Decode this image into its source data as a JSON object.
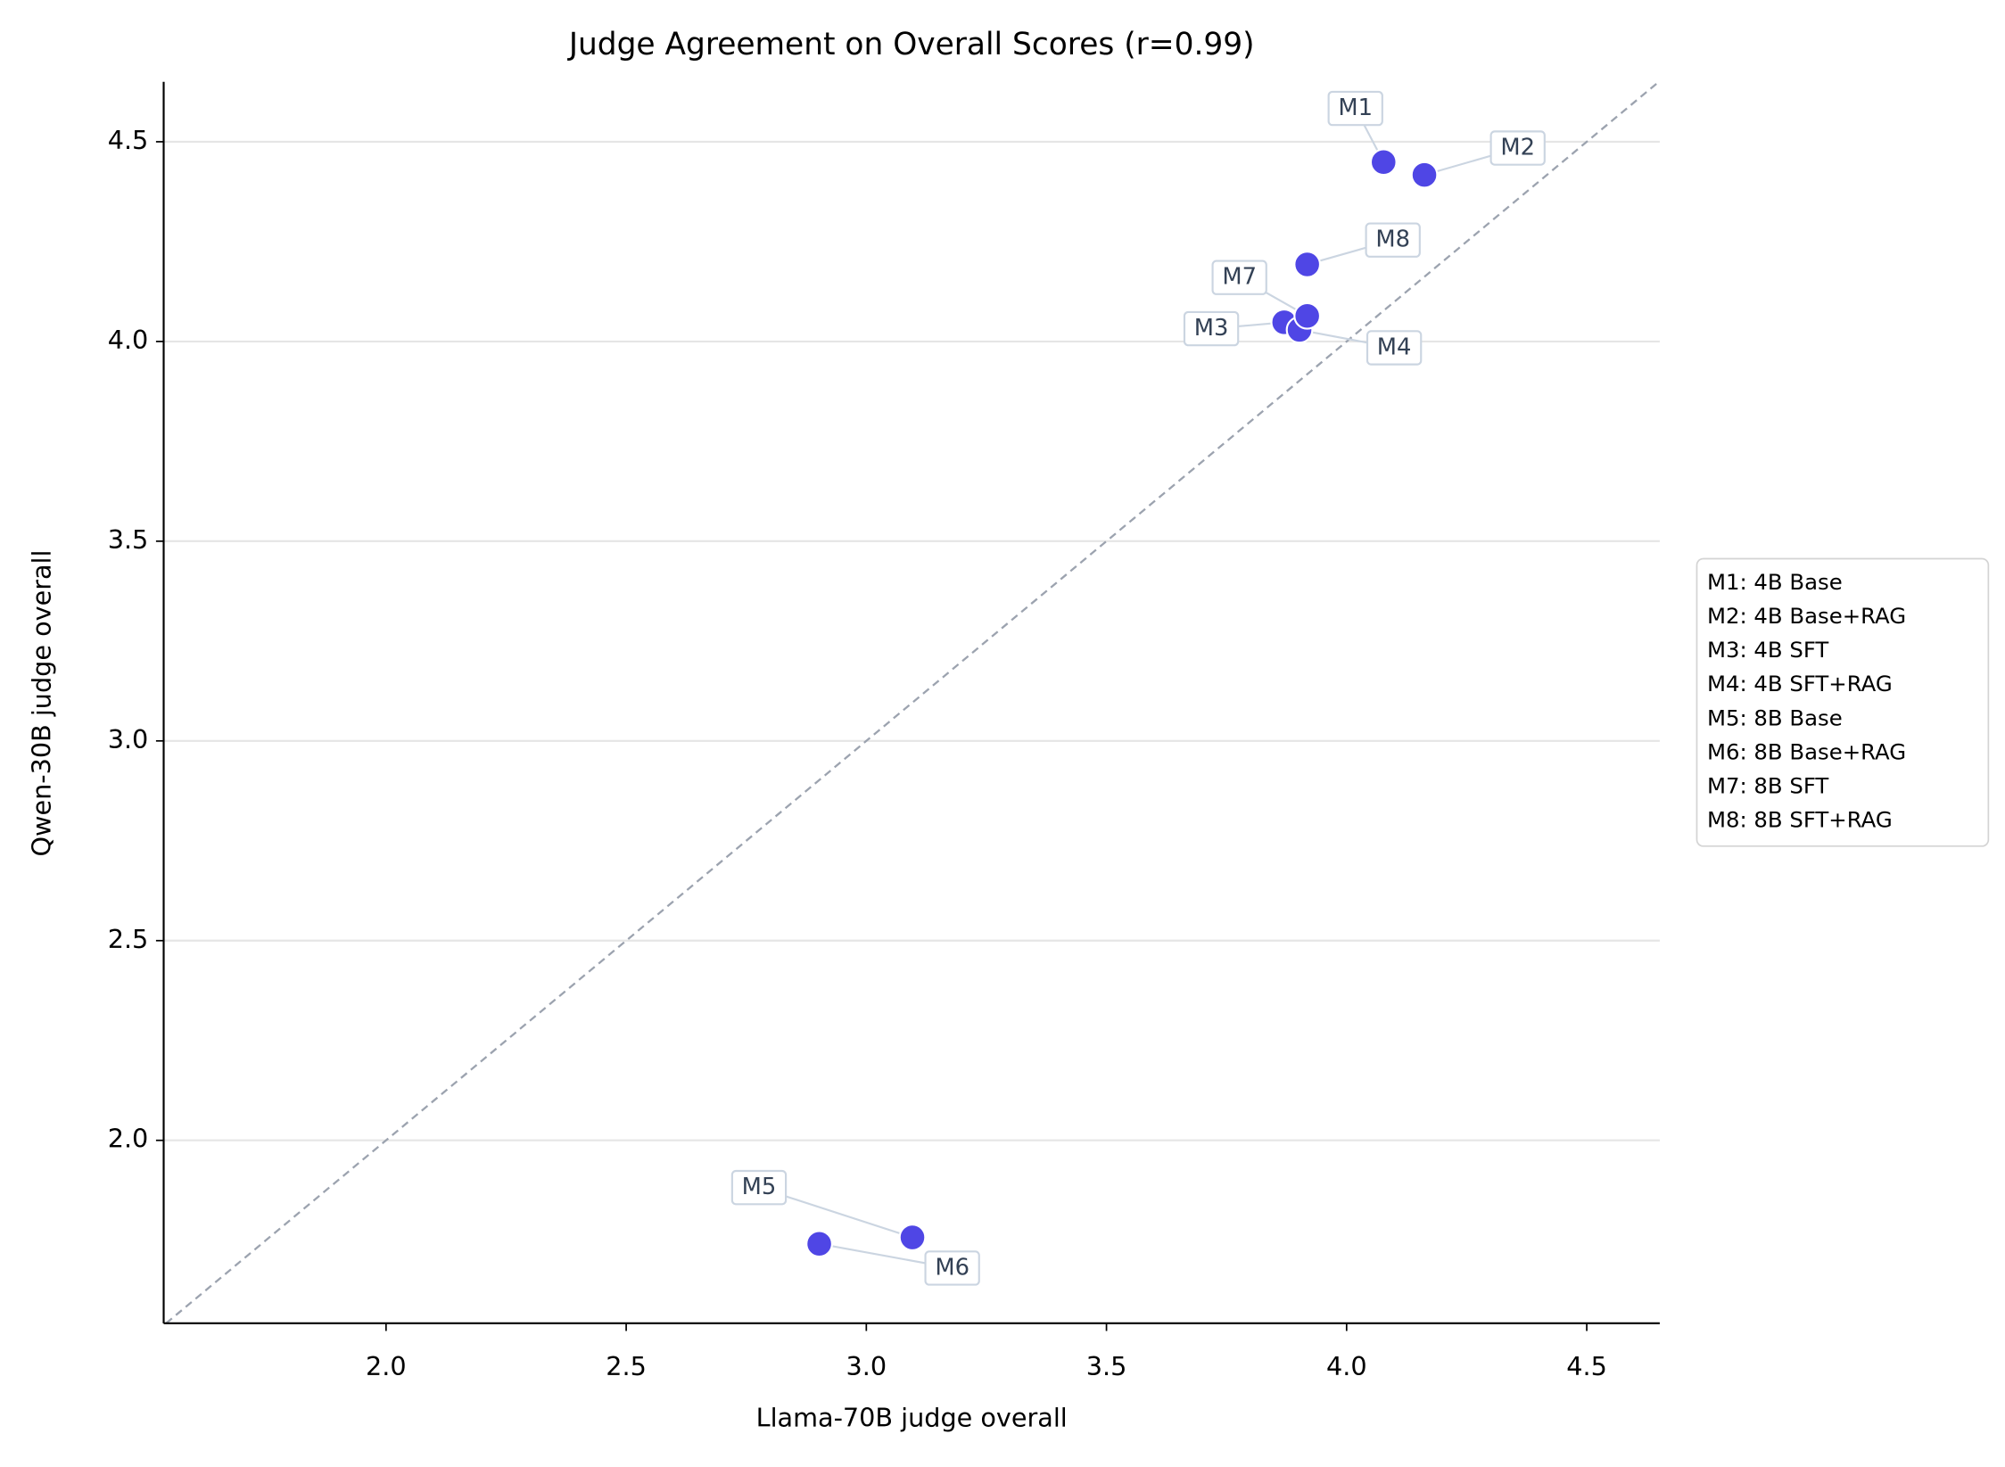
{
  "chart_data": {
    "type": "scatter",
    "title": "Judge Agreement on Overall Scores (r=0.99)",
    "x_label": "Llama-70B judge overall",
    "y_label": "Qwen-30B judge overall",
    "color": "#4f46e5",
    "series": [
      {
        "labels": [
          "M1",
          "M2",
          "M3",
          "M4",
          "M5",
          "M6",
          "M7",
          "M8"
        ],
        "x": [
          4.077,
          4.162,
          3.87,
          3.902,
          3.096,
          2.902,
          3.918,
          3.918
        ],
        "values": [
          4.449,
          4.417,
          4.048,
          4.029,
          1.757,
          1.741,
          4.064,
          4.193
        ]
      }
    ],
    "legend": [
      "M1: 4B Base",
      "M2: 4B Base+RAG",
      "M3: 4B SFT",
      "M4: 4B SFT+RAG",
      "M5: 8B Base",
      "M6: 8B Base+RAG",
      "M7: 8B SFT",
      "M8: 8B SFT+RAG"
    ],
    "xlim": [
      1.537,
      4.652
    ],
    "ylim": [
      1.542,
      4.65
    ],
    "xticks": [
      {
        "value": 2,
        "label": "2.0"
      },
      {
        "value": 2.5,
        "label": "2.5"
      },
      {
        "value": 3,
        "label": "3.0"
      },
      {
        "value": 3.5,
        "label": "3.5"
      },
      {
        "value": 4,
        "label": "4.0"
      },
      {
        "value": 4.5,
        "label": "4.5"
      }
    ],
    "yticks": [
      {
        "value": 2,
        "label": "2.0"
      },
      {
        "value": 2.5,
        "label": "2.5"
      },
      {
        "value": 3,
        "label": "3.0"
      },
      {
        "value": 3.5,
        "label": "3.5"
      },
      {
        "value": 4,
        "label": "4.0"
      },
      {
        "value": 4.5,
        "label": "4.5"
      }
    ],
    "grid": "y",
    "diagonal": true
  }
}
